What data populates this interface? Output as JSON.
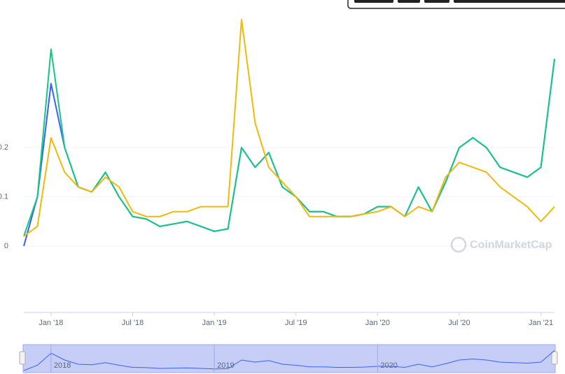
{
  "chart_data": {
    "type": "line",
    "x": [
      "2017-11",
      "2017-12",
      "2018-01",
      "2018-02",
      "2018-03",
      "2018-04",
      "2018-05",
      "2018-06",
      "2018-07",
      "2018-08",
      "2018-09",
      "2018-10",
      "2018-11",
      "2018-12",
      "2019-01",
      "2019-02",
      "2019-03",
      "2019-04",
      "2019-05",
      "2019-06",
      "2019-07",
      "2019-08",
      "2019-09",
      "2019-10",
      "2019-11",
      "2019-12",
      "2020-01",
      "2020-02",
      "2020-03",
      "2020-04",
      "2020-05",
      "2020-06",
      "2020-07",
      "2020-08",
      "2020-09",
      "2020-10",
      "2020-11",
      "2020-12",
      "2021-01",
      "2021-02"
    ],
    "series": [
      {
        "color": "#3861fb",
        "values": [
          0,
          0.1,
          0.33,
          0.2,
          0.12,
          0.11,
          0.15,
          0.1,
          0.06,
          0.055,
          0.04,
          0.045,
          0.05,
          0.04,
          0.03,
          0.035,
          0.2,
          0.16,
          0.19,
          0.12,
          0.1,
          0.07,
          0.07,
          0.06,
          0.06,
          0.065,
          0.08,
          0.08,
          0.06,
          0.12,
          0.07,
          0.13,
          0.2,
          0.22,
          0.2,
          0.16,
          0.15,
          0.14,
          0.16,
          0.38
        ]
      },
      {
        "color": "#16c784",
        "values": [
          0.02,
          0.1,
          0.4,
          0.2,
          0.12,
          0.11,
          0.15,
          0.1,
          0.06,
          0.055,
          0.04,
          0.045,
          0.05,
          0.04,
          0.03,
          0.035,
          0.2,
          0.16,
          0.19,
          0.12,
          0.1,
          0.07,
          0.07,
          0.06,
          0.06,
          0.065,
          0.08,
          0.08,
          0.06,
          0.12,
          0.07,
          0.13,
          0.2,
          0.22,
          0.2,
          0.16,
          0.15,
          0.14,
          0.16,
          0.38
        ]
      },
      {
        "color": "#f0b90b",
        "values": [
          0.02,
          0.04,
          0.22,
          0.15,
          0.12,
          0.11,
          0.14,
          0.12,
          0.07,
          0.06,
          0.06,
          0.07,
          0.07,
          0.08,
          0.08,
          0.08,
          0.46,
          0.25,
          0.16,
          0.13,
          0.1,
          0.06,
          0.06,
          0.06,
          0.06,
          0.065,
          0.07,
          0.08,
          0.06,
          0.08,
          0.07,
          0.14,
          0.17,
          0.16,
          0.15,
          0.12,
          0.1,
          0.08,
          0.05,
          0.08
        ]
      }
    ],
    "xlim": [
      "2017-11",
      "2021-02"
    ],
    "xticks": [
      {
        "value": "2018-01",
        "label": "Jan '18"
      },
      {
        "value": "2018-07",
        "label": "Jul '18"
      },
      {
        "value": "2019-01",
        "label": "Jan '19"
      },
      {
        "value": "2019-07",
        "label": "Jul '19"
      },
      {
        "value": "2020-01",
        "label": "Jan '20"
      },
      {
        "value": "2020-07",
        "label": "Jul '20"
      },
      {
        "value": "2021-01",
        "label": "Jan '21"
      }
    ],
    "ylim": [
      0,
      0.48
    ],
    "yticks": [
      0,
      0.1,
      0.2
    ],
    "grid": true,
    "watermark": "CoinMarketCap",
    "navigator_labels": [
      {
        "value": "2018-01",
        "label": "2018"
      },
      {
        "value": "2019-01",
        "label": "2019"
      },
      {
        "value": "2020-01",
        "label": "2020"
      }
    ]
  }
}
